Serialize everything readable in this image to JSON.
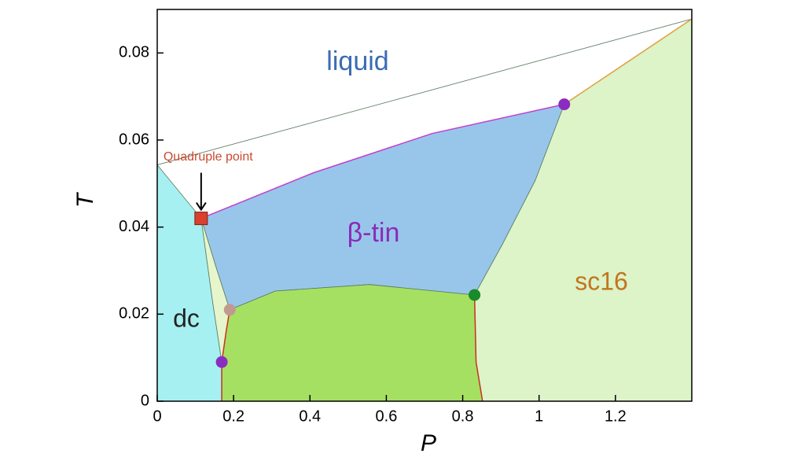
{
  "chart_data": {
    "type": "phase",
    "xlabel": "P",
    "ylabel": "T",
    "xlim": [
      0,
      1.4
    ],
    "ylim": [
      0,
      0.09
    ],
    "xticks": [
      0,
      0.2,
      0.4,
      0.6,
      0.8,
      1,
      1.2
    ],
    "yticks": [
      0,
      0.02,
      0.04,
      0.06,
      0.08
    ],
    "regions": [
      {
        "name": "liquid",
        "label_color": "#3a6cb4",
        "color": "#ffffff",
        "x": [
          0,
          0,
          1.4,
          1.4
        ],
        "y": [
          0.0543,
          0.09,
          0.09,
          0.0878
        ]
      },
      {
        "name": "β-tin",
        "label_color": "#8a2cb8",
        "color": "#98c6ea",
        "x": [
          0.115,
          0.41,
          0.72,
          1.066,
          0.99,
          0.905,
          0.831,
          0.556,
          0.309,
          0.19,
          0.154
        ],
        "y": [
          0.042,
          0.0525,
          0.0615,
          0.0682,
          0.0507,
          0.0362,
          0.0244,
          0.0268,
          0.0253,
          0.021,
          0.0308
        ]
      },
      {
        "name": "dc",
        "label_color": "#222222",
        "color": "#a6f0f2",
        "x": [
          0,
          0,
          0.115,
          0.144,
          0.169,
          0.169
        ],
        "y": [
          0,
          0.0543,
          0.042,
          0.0235,
          0.009,
          0
        ]
      },
      {
        "name": "sc16",
        "label_color": "#c27420",
        "color": "#ddf3c8",
        "x": [
          0.852,
          0.835,
          0.831,
          0.905,
          0.99,
          1.066,
          1.4,
          1.4
        ],
        "y": [
          0,
          0.009,
          0.0244,
          0.0362,
          0.0507,
          0.0682,
          0.0878,
          0
        ]
      },
      {
        "color": "#e6f5cc",
        "x": [
          0.115,
          0.154,
          0.19,
          0.181,
          0.169,
          0.144
        ],
        "y": [
          0.042,
          0.0308,
          0.021,
          0.0163,
          0.009,
          0.0235
        ]
      },
      {
        "color": "#a6e062",
        "x": [
          0.19,
          0.309,
          0.556,
          0.831,
          0.835,
          0.852,
          0.169,
          0.169,
          0.181
        ],
        "y": [
          0.021,
          0.0253,
          0.0268,
          0.0244,
          0.009,
          0,
          0,
          0.009,
          0.0163
        ]
      }
    ],
    "boundaries": [
      {
        "color": "#c040d0",
        "x": [
          0.115,
          0.41,
          0.72,
          1.066
        ],
        "y": [
          0.042,
          0.0525,
          0.0615,
          0.0682
        ]
      },
      {
        "color": "#e0a040",
        "x": [
          1.066,
          1.4
        ],
        "y": [
          0.0682,
          0.0878
        ]
      },
      {
        "color": "#c83020",
        "x": [
          0.831,
          0.835,
          0.852
        ],
        "y": [
          0.0244,
          0.009,
          0
        ]
      },
      {
        "color": "#c83020",
        "x": [
          0.19,
          0.181,
          0.169,
          0.169
        ],
        "y": [
          0.021,
          0.0163,
          0.009,
          0
        ]
      }
    ],
    "points": [
      {
        "x": 0.115,
        "y": 0.042,
        "color": "#d84030",
        "shape": "square"
      },
      {
        "x": 1.066,
        "y": 0.0682,
        "color": "#8a2cc0",
        "shape": "circle"
      },
      {
        "x": 0.831,
        "y": 0.0244,
        "color": "#1a8a2a",
        "shape": "circle"
      },
      {
        "x": 0.19,
        "y": 0.021,
        "color": "#c09a90",
        "shape": "circle"
      },
      {
        "x": 0.169,
        "y": 0.009,
        "color": "#8a2cc0",
        "shape": "circle"
      }
    ],
    "annotation": {
      "text": "Quadruple point",
      "color": "#c84a30"
    }
  }
}
